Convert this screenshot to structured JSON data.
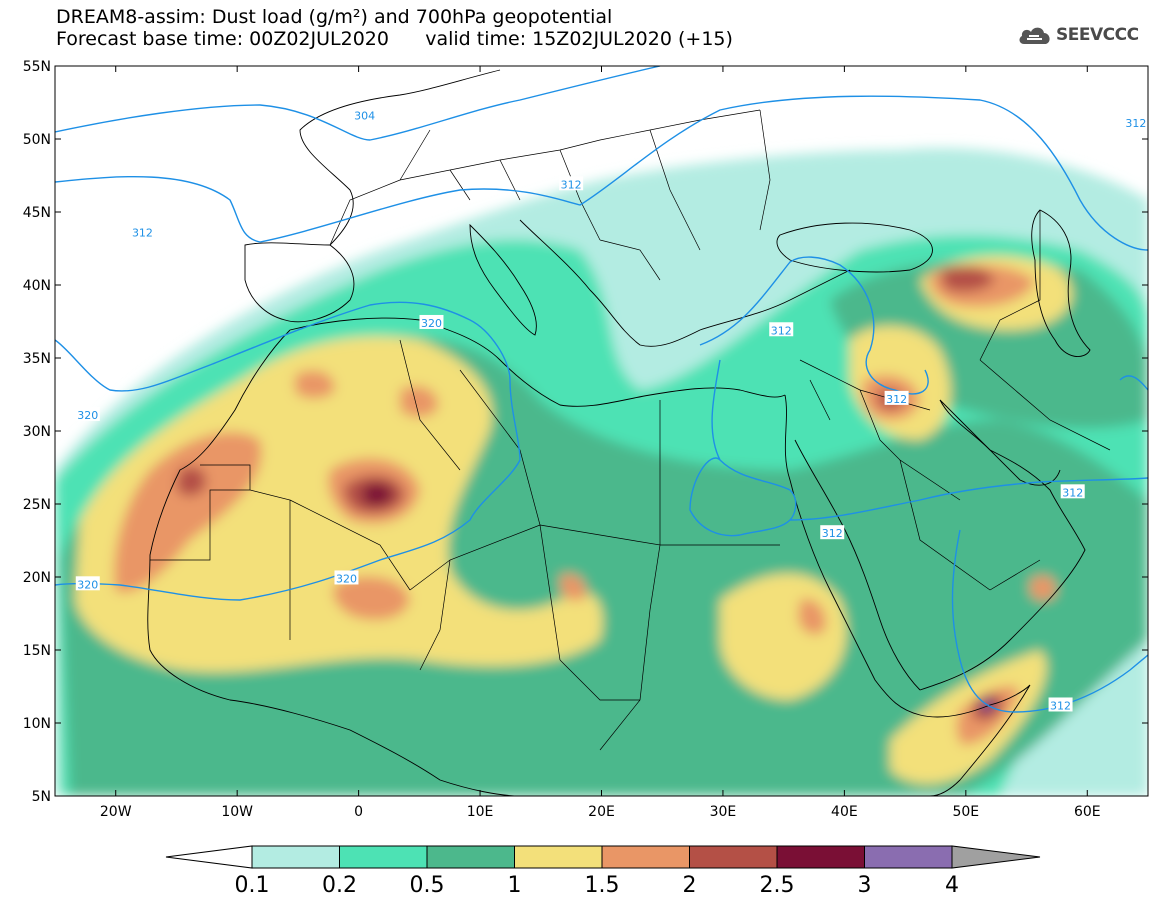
{
  "header": {
    "title_line1": "DREAM8-assim: Dust load (g/m²) and 700hPa geopotential",
    "title_line2_left": "Forecast base time: 00Z02JUL2020",
    "title_line2_right": "valid time: 15Z02JUL2020 (+15)"
  },
  "logo": {
    "text": "SEEVCCC",
    "icon": "cloud-icon"
  },
  "map": {
    "lon_ticks": [
      "20W",
      "10W",
      "0",
      "10E",
      "20E",
      "30E",
      "40E",
      "50E",
      "60E"
    ],
    "lat_ticks": [
      "55N",
      "50N",
      "45N",
      "40N",
      "35N",
      "30N",
      "25N",
      "20N",
      "15N",
      "10N",
      "5N"
    ],
    "lon_range": [
      -25,
      65
    ],
    "lat_range": [
      5,
      55
    ],
    "geopotential_labels": [
      {
        "text": "304",
        "lon": 0.5,
        "lat": 51.6
      },
      {
        "text": "312",
        "lon": 64.0,
        "lat": 51.1
      },
      {
        "text": "312",
        "lon": 17.5,
        "lat": 46.9
      },
      {
        "text": "312",
        "lon": -17.8,
        "lat": 43.6
      },
      {
        "text": "312",
        "lon": 34.8,
        "lat": 36.9
      },
      {
        "text": "320",
        "lon": 6.0,
        "lat": 37.4
      },
      {
        "text": "320",
        "lon": -22.3,
        "lat": 31.1
      },
      {
        "text": "312",
        "lon": 44.3,
        "lat": 32.2
      },
      {
        "text": "312",
        "lon": 58.8,
        "lat": 25.8
      },
      {
        "text": "312",
        "lon": 39.0,
        "lat": 23.0
      },
      {
        "text": "320",
        "lon": -22.3,
        "lat": 19.5
      },
      {
        "text": "320",
        "lon": -1.0,
        "lat": 19.9
      },
      {
        "text": "312",
        "lon": 57.8,
        "lat": 11.2
      }
    ]
  },
  "legend": {
    "labels": [
      "0.1",
      "0.2",
      "0.5",
      "1",
      "1.5",
      "2",
      "2.5",
      "3",
      "4"
    ],
    "colors": [
      "#b3ece2",
      "#4de2b4",
      "#4cb88c",
      "#f3e07a",
      "#e99666",
      "#b45046",
      "#7a0f35",
      "#8a6db0"
    ],
    "low_arrow_color": "#ffffff",
    "high_arrow_color": "#a0a0a0"
  },
  "colors": {
    "contour": "#1e90e6",
    "border": "#000000",
    "background": "#ffffff"
  }
}
